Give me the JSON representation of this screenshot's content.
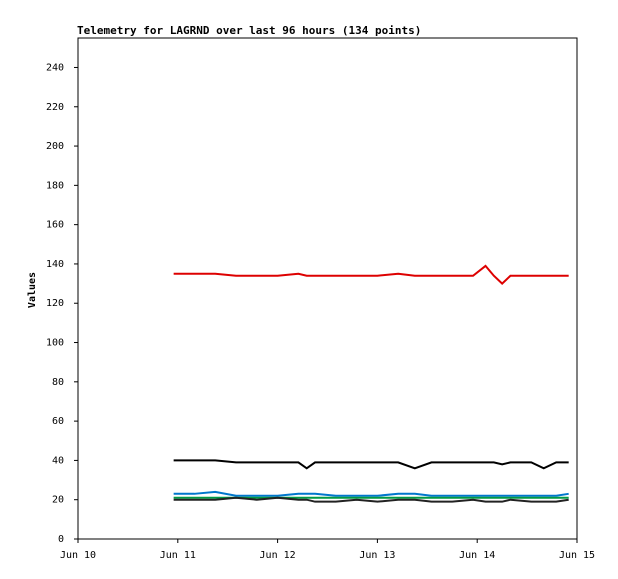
{
  "chart_data": {
    "type": "line",
    "title": "Telemetry for LAGRND over last 96 hours (134 points)",
    "y_label": "Values",
    "x": [
      23,
      28,
      33,
      38,
      43,
      48,
      53,
      55,
      57,
      62,
      67,
      72,
      77,
      81,
      85,
      90,
      95,
      98,
      100,
      102,
      104,
      109,
      112,
      115,
      118
    ],
    "series": [
      {
        "color": "#dd0000",
        "values": [
          135,
          135,
          135,
          134,
          134,
          134,
          135,
          134,
          134,
          134,
          134,
          134,
          135,
          134,
          134,
          134,
          134,
          139,
          134,
          130,
          134,
          134,
          134,
          134,
          134
        ]
      },
      {
        "color": "#000000",
        "values": [
          40,
          40,
          40,
          39,
          39,
          39,
          39,
          36,
          39,
          39,
          39,
          39,
          39,
          36,
          39,
          39,
          39,
          39,
          39,
          38,
          39,
          39,
          36,
          39,
          39
        ]
      },
      {
        "color": "#0077cc",
        "values": [
          23,
          23,
          24,
          22,
          22,
          22,
          23,
          23,
          23,
          22,
          22,
          22,
          23,
          23,
          22,
          22,
          22,
          22,
          22,
          22,
          22,
          22,
          22,
          22,
          23
        ]
      },
      {
        "color": "#009944",
        "values": [
          21,
          21,
          21,
          21,
          21,
          21,
          21,
          21,
          21,
          21,
          21,
          21,
          21,
          21,
          21,
          21,
          21,
          21,
          21,
          21,
          21,
          21,
          21,
          21,
          21
        ]
      },
      {
        "color": "#222222",
        "values": [
          20,
          20,
          20,
          21,
          20,
          21,
          20,
          20,
          19,
          19,
          20,
          19,
          20,
          20,
          19,
          19,
          20,
          19,
          19,
          19,
          20,
          19,
          19,
          19,
          20
        ]
      }
    ],
    "xlim": [
      0,
      120
    ],
    "xticks": [
      {
        "value": 0,
        "label": "Jun 10"
      },
      {
        "value": 24,
        "label": "Jun 11"
      },
      {
        "value": 48,
        "label": "Jun 12"
      },
      {
        "value": 72,
        "label": "Jun 13"
      },
      {
        "value": 96,
        "label": "Jun 14"
      },
      {
        "value": 120,
        "label": "Jun 15"
      }
    ],
    "ylim": [
      0,
      255
    ],
    "yticks": [
      0,
      20,
      40,
      60,
      80,
      100,
      120,
      140,
      160,
      180,
      200,
      220,
      240
    ],
    "grid": false
  }
}
